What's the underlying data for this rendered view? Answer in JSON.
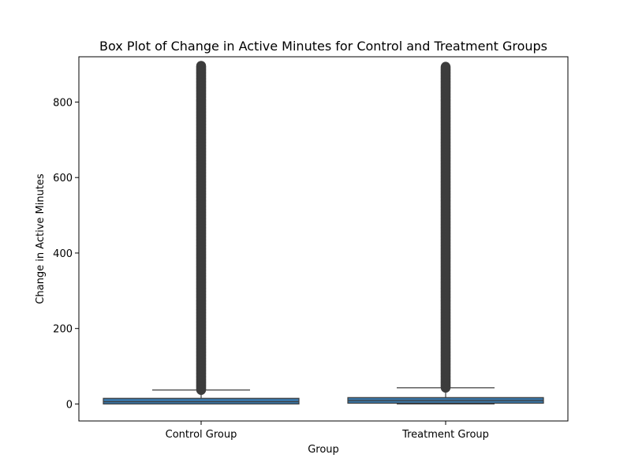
{
  "chart_data": {
    "type": "box",
    "title": "Box Plot of Change in Active Minutes for Control and Treatment Groups",
    "xlabel": "Group",
    "ylabel": "Change in Active Minutes",
    "ylim": [
      -45,
      920
    ],
    "yticks": [
      0,
      200,
      400,
      600,
      800
    ],
    "grid": false,
    "categories": [
      "Control Group",
      "Treatment Group"
    ],
    "boxes": [
      {
        "category": "Control Group",
        "min": 0,
        "q1": 0,
        "median": 6,
        "q3": 15,
        "whisker_high": 37,
        "outlier_range": [
          37,
          897
        ]
      },
      {
        "category": "Treatment Group",
        "min": 0,
        "q1": 2,
        "median": 9,
        "q3": 17,
        "whisker_high": 43,
        "outlier_range": [
          43,
          895
        ]
      }
    ],
    "colors": {
      "box_fill": "#3a75a5",
      "line": "#3d3d3d",
      "outlier": "#3d3d3d"
    }
  }
}
